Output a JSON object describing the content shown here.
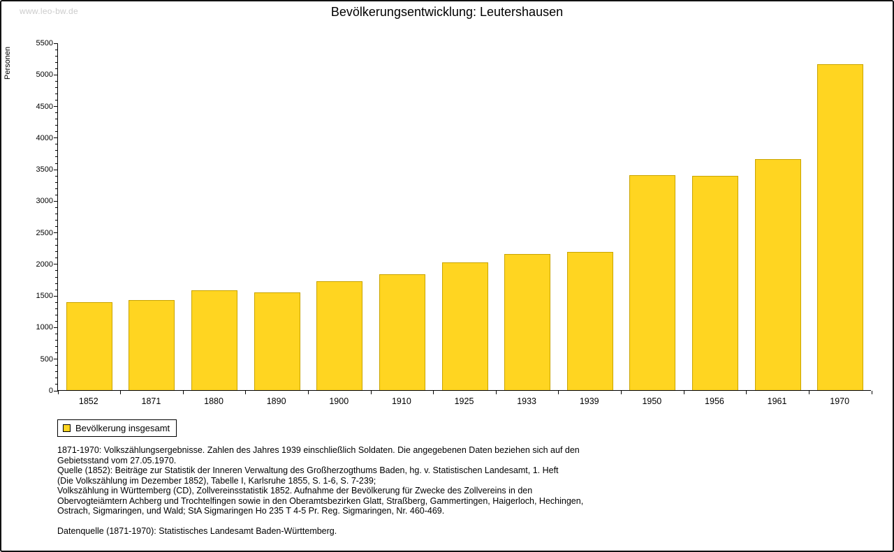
{
  "watermark": "www.leo-bw.de",
  "title": "Bevölkerungsentwicklung: Leutershausen",
  "chart_data": {
    "type": "bar",
    "title": "Bevölkerungsentwicklung: Leutershausen",
    "xlabel": "",
    "ylabel": "Personen",
    "categories": [
      "1852",
      "1871",
      "1880",
      "1890",
      "1900",
      "1910",
      "1925",
      "1933",
      "1939",
      "1950",
      "1956",
      "1961",
      "1970"
    ],
    "series": [
      {
        "name": "Bevölkerung insgesamt",
        "values": [
          1390,
          1420,
          1580,
          1550,
          1720,
          1830,
          2020,
          2150,
          2185,
          3400,
          3390,
          3660,
          5160
        ]
      }
    ],
    "ylim": [
      0,
      5500
    ],
    "ytick_step": 500,
    "ytick_minor_step": 100,
    "grid": false,
    "legend_position": "bottom-left",
    "bar_color": "#FFD521",
    "bar_border_color": "#C9A400"
  },
  "legend": {
    "label": "Bevölkerung insgesamt",
    "swatch_color": "#FFD521"
  },
  "footnotes": {
    "lines": [
      "1871-1970: Volkszählungsergebnisse. Zahlen des Jahres 1939 einschließlich Soldaten. Die angegebenen Daten beziehen sich auf den",
      "Gebietsstand vom 27.05.1970.",
      "Quelle (1852): Beiträge zur Statistik der Inneren Verwaltung des Großherzogthums Baden, hg. v. Statistischen Landesamt, 1. Heft",
      "(Die Volkszählung im Dezember 1852), Tabelle I, Karlsruhe 1855, S. 1-6, S. 7-239;",
      "Volkszählung in Württemberg (CD), Zollvereinsstatistik 1852. Aufnahme der Bevölkerung für Zwecke des Zollvereins in den",
      "Obervogteiämtern Achberg und Trochtelfingen sowie in den Oberamtsbezirken Glatt, Straßberg, Gammertingen, Haigerloch, Hechingen,",
      "Ostrach, Sigmaringen, und Wald; StA Sigmaringen Ho 235 T 4-5 Pr. Reg. Sigmaringen, Nr. 460-469.",
      "",
      "Datenquelle (1871-1970): Statistisches Landesamt Baden-Württemberg."
    ]
  }
}
